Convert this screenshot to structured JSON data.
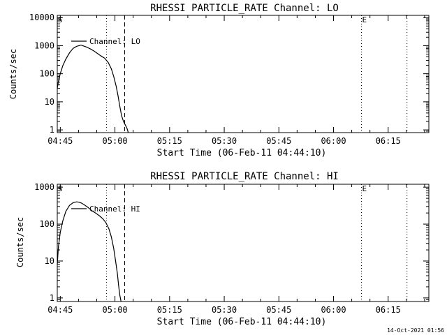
{
  "footer": {
    "timestamp": "14-Oct-2021 01:56"
  },
  "chart_data": [
    {
      "type": "line",
      "title": "RHESSI PARTICLE_RATE Channel: LO",
      "xlabel": "Start Time (06-Feb-11 04:44:10)",
      "ylabel": "Counts/sec",
      "y_scale": "log",
      "xlim": [
        "04:44:10",
        "06:26:10"
      ],
      "ylim": [
        0.8,
        12000
      ],
      "xticks": [
        "04:45",
        "05:00",
        "05:15",
        "05:30",
        "05:45",
        "06:00",
        "06:15"
      ],
      "yticks": [
        1,
        10,
        100,
        1000,
        10000
      ],
      "ytick_labels": [
        "1",
        "10",
        "100",
        "1000",
        "10000"
      ],
      "legend_label": "Channel: LO",
      "legend_position": "top-left",
      "markers": [
        {
          "label": "S",
          "time": "04:44:10",
          "style": "dotted"
        },
        {
          "label": "",
          "time": "04:57:40",
          "style": "dotted"
        },
        {
          "label": "",
          "time": "05:02:40",
          "style": "dashed"
        },
        {
          "label": "E",
          "time": "06:07:40",
          "style": "dotted"
        },
        {
          "label": "",
          "time": "06:20:10",
          "style": "dotted"
        }
      ],
      "series": [
        {
          "x": [
            "04:44:10",
            "04:44:30",
            "04:45:00",
            "04:45:40",
            "04:46:30",
            "04:47:30",
            "04:48:30",
            "04:49:30",
            "04:50:10",
            "04:50:40",
            "04:51:20",
            "04:52:10",
            "04:53:10",
            "04:54:10",
            "04:55:10",
            "04:56:10",
            "04:57:10",
            "04:58:10",
            "04:59:00",
            "04:59:40",
            "05:00:20",
            "05:00:50",
            "05:01:20",
            "05:01:50",
            "05:02:20",
            "05:02:50",
            "05:03:20",
            "05:03:40"
          ],
          "y": [
            30,
            55,
            100,
            190,
            330,
            550,
            800,
            950,
            1000,
            1050,
            980,
            900,
            780,
            650,
            530,
            430,
            360,
            250,
            150,
            80,
            36,
            17,
            7,
            3.2,
            2,
            1.5,
            1.1,
            0.8
          ]
        }
      ]
    },
    {
      "type": "line",
      "title": "RHESSI PARTICLE_RATE Channel: HI",
      "xlabel": "Start Time (06-Feb-11 04:44:10)",
      "ylabel": "Counts/sec",
      "y_scale": "log",
      "xlim": [
        "04:44:10",
        "06:26:10"
      ],
      "ylim": [
        0.8,
        1200
      ],
      "xticks": [
        "04:45",
        "05:00",
        "05:15",
        "05:30",
        "05:45",
        "06:00",
        "06:15"
      ],
      "yticks": [
        1,
        10,
        100,
        1000
      ],
      "ytick_labels": [
        "1",
        "10",
        "100",
        "1000"
      ],
      "legend_label": "Channel: HI",
      "legend_position": "top-left",
      "markers": [
        {
          "label": "S",
          "time": "04:44:10",
          "style": "dotted"
        },
        {
          "label": "",
          "time": "04:57:40",
          "style": "dotted"
        },
        {
          "label": "",
          "time": "05:02:40",
          "style": "dashed"
        },
        {
          "label": "E",
          "time": "06:07:40",
          "style": "dotted"
        },
        {
          "label": "",
          "time": "06:20:10",
          "style": "dotted"
        }
      ],
      "series": [
        {
          "x": [
            "04:44:10",
            "04:44:30",
            "04:45:00",
            "04:45:40",
            "04:46:30",
            "04:47:30",
            "04:48:30",
            "04:49:30",
            "04:50:10",
            "04:50:50",
            "04:51:40",
            "04:52:40",
            "04:53:40",
            "04:54:40",
            "04:55:40",
            "04:56:40",
            "04:57:30",
            "04:58:20",
            "04:59:00",
            "04:59:40",
            "05:00:10",
            "05:00:40",
            "05:01:00",
            "05:01:20",
            "05:01:40"
          ],
          "y": [
            8,
            25,
            60,
            120,
            220,
            320,
            380,
            400,
            390,
            370,
            330,
            280,
            230,
            200,
            170,
            140,
            110,
            75,
            45,
            22,
            10,
            4.5,
            2.2,
            1.2,
            0.8
          ]
        }
      ]
    }
  ]
}
